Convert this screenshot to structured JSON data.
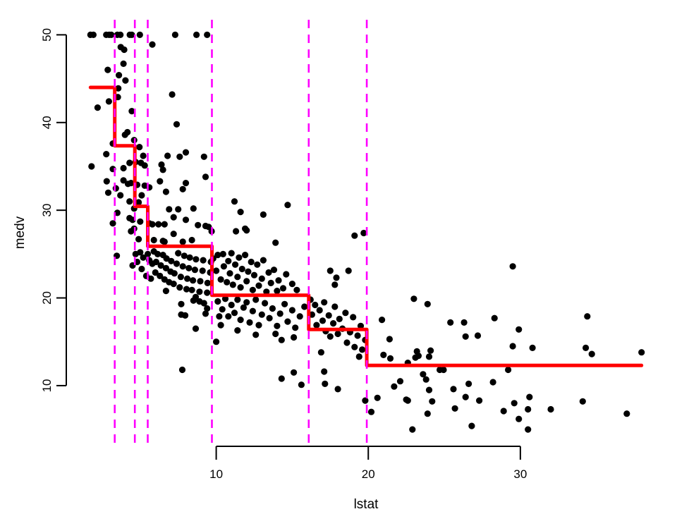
{
  "figure": {
    "background": "#FFFFFF"
  },
  "chart_data": {
    "type": "scatter",
    "title": "",
    "xlabel": "lstat",
    "ylabel": "medv",
    "x_ticks": [
      10,
      20,
      30
    ],
    "y_ticks": [
      10,
      20,
      30,
      40,
      50
    ],
    "xlim": [
      0.28,
      39.42
    ],
    "ylim": [
      3.08,
      51.72
    ],
    "grid": false,
    "legend": "none",
    "point_color": "#000000",
    "axis_color": "#000000",
    "step_fit": {
      "description": "regression tree step function",
      "color": "#FF0000",
      "breaks": [
        1.73,
        3.325,
        4.65,
        5.495,
        9.715,
        16.085,
        19.9,
        37.97
      ],
      "values": [
        44.0,
        37.35,
        30.45,
        25.9,
        20.3,
        16.4,
        12.3
      ]
    },
    "split_lines": {
      "description": "tree split points on lstat",
      "color": "#FF00FF",
      "style": "dashed",
      "x": [
        3.325,
        4.65,
        5.495,
        9.715,
        16.085,
        19.9
      ]
    },
    "points": [
      [
        1.73,
        50
      ],
      [
        1.92,
        50
      ],
      [
        2.77,
        50
      ],
      [
        2.96,
        50
      ],
      [
        3.1,
        50
      ],
      [
        3.5,
        50
      ],
      [
        3.7,
        50
      ],
      [
        4.32,
        50
      ],
      [
        4.45,
        50
      ],
      [
        4.98,
        50
      ],
      [
        7.3,
        50
      ],
      [
        8.7,
        50
      ],
      [
        9.4,
        50
      ],
      [
        5.8,
        48.9
      ],
      [
        3.72,
        48.6
      ],
      [
        3.95,
        48.3
      ],
      [
        3.9,
        46.7
      ],
      [
        2.87,
        46.0
      ],
      [
        3.6,
        45.4
      ],
      [
        4.03,
        44.8
      ],
      [
        3.56,
        43.9
      ],
      [
        7.1,
        43.2
      ],
      [
        2.2,
        41.7
      ],
      [
        2.94,
        42.4
      ],
      [
        3.53,
        42.9
      ],
      [
        4.45,
        41.3
      ],
      [
        7.4,
        39.8
      ],
      [
        4.0,
        38.6
      ],
      [
        4.6,
        38.0
      ],
      [
        4.16,
        38.9
      ],
      [
        3.2,
        37.6
      ],
      [
        4.95,
        37.2
      ],
      [
        2.77,
        36.4
      ],
      [
        5.2,
        36.2
      ],
      [
        6.8,
        36.2
      ],
      [
        7.6,
        36.1
      ],
      [
        8.0,
        36.6
      ],
      [
        9.2,
        36.1
      ],
      [
        1.8,
        35.0
      ],
      [
        3.2,
        34.7
      ],
      [
        3.9,
        34.8
      ],
      [
        4.3,
        35.4
      ],
      [
        4.7,
        35.5
      ],
      [
        5.05,
        35.4
      ],
      [
        5.3,
        35.1
      ],
      [
        6.4,
        35.2
      ],
      [
        6.5,
        34.6
      ],
      [
        2.8,
        33.3
      ],
      [
        3.4,
        32.5
      ],
      [
        2.9,
        32.0
      ],
      [
        3.9,
        33.4
      ],
      [
        4.2,
        33.0
      ],
      [
        4.4,
        33.1
      ],
      [
        3.7,
        31.7
      ],
      [
        4.8,
        32.9
      ],
      [
        5.3,
        32.8
      ],
      [
        5.6,
        32.6
      ],
      [
        6.3,
        33.3
      ],
      [
        6.7,
        32.1
      ],
      [
        7.8,
        32.4
      ],
      [
        8.0,
        33.1
      ],
      [
        9.3,
        33.8
      ],
      [
        5.1,
        31.7
      ],
      [
        11.2,
        31.0
      ],
      [
        4.3,
        31.0
      ],
      [
        4.9,
        30.9
      ],
      [
        3.5,
        29.7
      ],
      [
        4.6,
        30.2
      ],
      [
        6.9,
        30.1
      ],
      [
        7.5,
        30.1
      ],
      [
        8.5,
        30.2
      ],
      [
        11.6,
        29.8
      ],
      [
        14.7,
        30.6
      ],
      [
        13.1,
        29.5
      ],
      [
        3.2,
        28.5
      ],
      [
        4.3,
        29.1
      ],
      [
        4.5,
        28.9
      ],
      [
        4.6,
        27.9
      ],
      [
        5.0,
        28.7
      ],
      [
        5.6,
        28.5
      ],
      [
        5.8,
        28.4
      ],
      [
        6.2,
        28.4
      ],
      [
        6.6,
        28.4
      ],
      [
        7.2,
        29.2
      ],
      [
        8.0,
        28.9
      ],
      [
        8.8,
        28.3
      ],
      [
        9.3,
        28.2
      ],
      [
        9.5,
        28.1
      ],
      [
        9.7,
        27.6
      ],
      [
        11.9,
        27.9
      ],
      [
        11.3,
        27.6
      ],
      [
        12.0,
        27.7
      ],
      [
        4.4,
        27.6
      ],
      [
        4.9,
        26.7
      ],
      [
        6.5,
        26.5
      ],
      [
        6.6,
        26.4
      ],
      [
        7.2,
        27.3
      ],
      [
        7.8,
        26.4
      ],
      [
        13.9,
        26.3
      ],
      [
        19.1,
        27.1
      ],
      [
        19.7,
        27.4
      ],
      [
        5.9,
        26.6
      ],
      [
        8.4,
        26.6
      ],
      [
        3.46,
        24.8
      ],
      [
        4.5,
        23.7
      ],
      [
        4.7,
        25.0
      ],
      [
        4.8,
        24.1
      ],
      [
        5.0,
        25.2
      ],
      [
        5.1,
        23.3
      ],
      [
        5.2,
        24.6
      ],
      [
        5.4,
        22.5
      ],
      [
        5.5,
        25.0
      ],
      [
        5.6,
        24.3
      ],
      [
        5.7,
        22.2
      ],
      [
        5.8,
        23.9
      ],
      [
        5.9,
        25.3
      ],
      [
        6.0,
        22.9
      ],
      [
        6.05,
        24.1
      ],
      [
        6.15,
        25.0
      ],
      [
        6.3,
        22.5
      ],
      [
        6.36,
        23.7
      ],
      [
        6.5,
        24.9
      ],
      [
        6.6,
        22.1
      ],
      [
        6.7,
        23.4
      ],
      [
        6.73,
        24.5
      ],
      [
        6.9,
        21.8
      ],
      [
        7.0,
        23.0
      ],
      [
        7.04,
        24.2
      ],
      [
        7.2,
        21.6
      ],
      [
        7.25,
        22.8
      ],
      [
        7.4,
        23.9
      ],
      [
        7.5,
        25.1
      ],
      [
        7.6,
        21.2
      ],
      [
        7.67,
        22.4
      ],
      [
        7.8,
        23.6
      ],
      [
        7.9,
        24.8
      ],
      [
        8.05,
        21.0
      ],
      [
        8.1,
        22.2
      ],
      [
        8.2,
        23.4
      ],
      [
        8.26,
        24.6
      ],
      [
        8.4,
        20.9
      ],
      [
        8.47,
        22.0
      ],
      [
        8.6,
        23.2
      ],
      [
        8.67,
        24.4
      ],
      [
        8.9,
        20.7
      ],
      [
        8.95,
        21.9
      ],
      [
        9.1,
        23.1
      ],
      [
        9.14,
        24.3
      ],
      [
        9.4,
        20.6
      ],
      [
        9.43,
        21.7
      ],
      [
        9.6,
        22.9
      ],
      [
        9.65,
        24.1
      ],
      [
        6.7,
        20.8
      ],
      [
        7.7,
        19.3
      ],
      [
        7.7,
        18.1
      ],
      [
        7.96,
        18.0
      ],
      [
        8.5,
        19.7
      ],
      [
        8.65,
        20.1
      ],
      [
        8.9,
        19.6
      ],
      [
        9.2,
        19.4
      ],
      [
        9.4,
        18.8
      ],
      [
        9.3,
        18.2
      ],
      [
        8.65,
        16.5
      ],
      [
        10.0,
        15.0
      ],
      [
        10.2,
        17.9
      ],
      [
        9.8,
        24.5
      ],
      [
        10.0,
        23.1
      ],
      [
        10.1,
        24.9
      ],
      [
        10.3,
        22.1
      ],
      [
        10.45,
        25.0
      ],
      [
        10.5,
        23.6
      ],
      [
        10.7,
        21.8
      ],
      [
        10.8,
        24.2
      ],
      [
        10.9,
        22.8
      ],
      [
        11.0,
        25.1
      ],
      [
        11.1,
        21.5
      ],
      [
        11.25,
        23.8
      ],
      [
        11.4,
        22.4
      ],
      [
        11.5,
        24.6
      ],
      [
        11.6,
        21.2
      ],
      [
        11.7,
        23.3
      ],
      [
        11.9,
        24.9
      ],
      [
        12.0,
        21.9
      ],
      [
        12.1,
        23.0
      ],
      [
        12.3,
        24.1
      ],
      [
        12.4,
        20.9
      ],
      [
        12.5,
        22.6
      ],
      [
        12.7,
        23.8
      ],
      [
        12.8,
        21.4
      ],
      [
        13.0,
        22.2
      ],
      [
        13.1,
        24.3
      ],
      [
        13.3,
        20.7
      ],
      [
        13.45,
        22.9
      ],
      [
        13.6,
        21.7
      ],
      [
        13.8,
        23.2
      ],
      [
        14.0,
        20.8
      ],
      [
        14.1,
        22.0
      ],
      [
        14.4,
        21.1
      ],
      [
        14.6,
        22.7
      ],
      [
        15.0,
        21.6
      ],
      [
        15.3,
        20.9
      ],
      [
        10.1,
        19.6
      ],
      [
        10.4,
        18.7
      ],
      [
        10.6,
        19.9
      ],
      [
        10.8,
        17.9
      ],
      [
        11.0,
        19.2
      ],
      [
        11.2,
        18.3
      ],
      [
        11.4,
        19.8
      ],
      [
        11.6,
        17.5
      ],
      [
        11.8,
        18.9
      ],
      [
        12.0,
        19.5
      ],
      [
        12.2,
        17.2
      ],
      [
        12.4,
        18.5
      ],
      [
        12.6,
        19.8
      ],
      [
        12.8,
        16.9
      ],
      [
        13.0,
        18.1
      ],
      [
        13.2,
        19.4
      ],
      [
        13.5,
        17.7
      ],
      [
        13.7,
        18.8
      ],
      [
        14.0,
        16.8
      ],
      [
        14.2,
        18.2
      ],
      [
        14.5,
        19.3
      ],
      [
        14.7,
        17.3
      ],
      [
        15.0,
        18.6
      ],
      [
        15.2,
        16.6
      ],
      [
        15.5,
        17.9
      ],
      [
        15.8,
        19.0
      ],
      [
        11.4,
        16.3
      ],
      [
        12.6,
        15.8
      ],
      [
        13.9,
        15.9
      ],
      [
        15.1,
        15.5
      ],
      [
        10.3,
        16.9
      ],
      [
        14.3,
        15.2
      ],
      [
        16.2,
        19.8
      ],
      [
        16.3,
        18.1
      ],
      [
        16.5,
        19.2
      ],
      [
        16.6,
        16.9
      ],
      [
        16.8,
        18.6
      ],
      [
        17.0,
        17.4
      ],
      [
        17.1,
        19.5
      ],
      [
        17.2,
        16.2
      ],
      [
        17.4,
        18.0
      ],
      [
        17.5,
        15.6
      ],
      [
        17.7,
        17.1
      ],
      [
        17.8,
        19.0
      ],
      [
        18.0,
        15.9
      ],
      [
        18.1,
        17.6
      ],
      [
        18.3,
        16.5
      ],
      [
        18.5,
        18.3
      ],
      [
        18.6,
        14.9
      ],
      [
        18.8,
        16.1
      ],
      [
        19.0,
        17.8
      ],
      [
        19.1,
        14.4
      ],
      [
        19.3,
        15.7
      ],
      [
        19.5,
        16.8
      ],
      [
        19.6,
        14.1
      ],
      [
        19.8,
        15.2
      ],
      [
        17.5,
        23.1
      ],
      [
        18.7,
        23.1
      ],
      [
        17.9,
        22.3
      ],
      [
        17.8,
        21.5
      ],
      [
        16.9,
        13.8
      ],
      [
        19.4,
        13.3
      ],
      [
        23.0,
        19.9
      ],
      [
        23.9,
        19.3
      ],
      [
        25.4,
        17.2
      ],
      [
        26.3,
        17.2
      ],
      [
        28.3,
        17.7
      ],
      [
        29.9,
        16.4
      ],
      [
        26.4,
        15.6
      ],
      [
        27.2,
        15.7
      ],
      [
        34.4,
        17.9
      ],
      [
        29.5,
        14.5
      ],
      [
        30.8,
        14.3
      ],
      [
        34.3,
        14.3
      ],
      [
        34.7,
        13.6
      ],
      [
        37.97,
        13.8
      ],
      [
        23.2,
        13.9
      ],
      [
        23.3,
        13.4
      ],
      [
        23.1,
        13.2
      ],
      [
        24.1,
        14.0
      ],
      [
        24.0,
        13.3
      ],
      [
        22.6,
        12.6
      ],
      [
        29.5,
        23.6
      ],
      [
        20.9,
        17.5
      ],
      [
        21.4,
        15.3
      ],
      [
        21.0,
        13.5
      ],
      [
        21.45,
        13.1
      ],
      [
        24.7,
        11.8
      ],
      [
        24.95,
        11.8
      ],
      [
        23.6,
        11.3
      ],
      [
        23.8,
        10.7
      ],
      [
        29.2,
        11.8
      ],
      [
        26.6,
        10.2
      ],
      [
        28.2,
        10.4
      ],
      [
        24.0,
        9.5
      ],
      [
        25.6,
        9.6
      ],
      [
        22.6,
        8.3
      ],
      [
        24.2,
        8.2
      ],
      [
        26.4,
        8.7
      ],
      [
        27.3,
        8.3
      ],
      [
        29.6,
        8.0
      ],
      [
        30.6,
        8.7
      ],
      [
        30.5,
        7.3
      ],
      [
        23.9,
        6.8
      ],
      [
        25.7,
        7.4
      ],
      [
        28.9,
        7.1
      ],
      [
        29.9,
        6.2
      ],
      [
        32.0,
        7.3
      ],
      [
        34.1,
        8.2
      ],
      [
        37.0,
        6.8
      ],
      [
        26.8,
        5.4
      ],
      [
        22.9,
        5.0
      ],
      [
        30.5,
        5.0
      ],
      [
        7.77,
        11.8
      ],
      [
        14.3,
        10.8
      ],
      [
        15.1,
        11.5
      ],
      [
        15.6,
        10.1
      ],
      [
        17.1,
        11.6
      ],
      [
        18.0,
        9.6
      ],
      [
        17.15,
        10.2
      ],
      [
        19.8,
        8.3
      ],
      [
        20.2,
        7.0
      ],
      [
        20.6,
        8.6
      ],
      [
        22.1,
        10.5
      ],
      [
        21.7,
        9.9
      ],
      [
        22.5,
        8.4
      ]
    ]
  }
}
